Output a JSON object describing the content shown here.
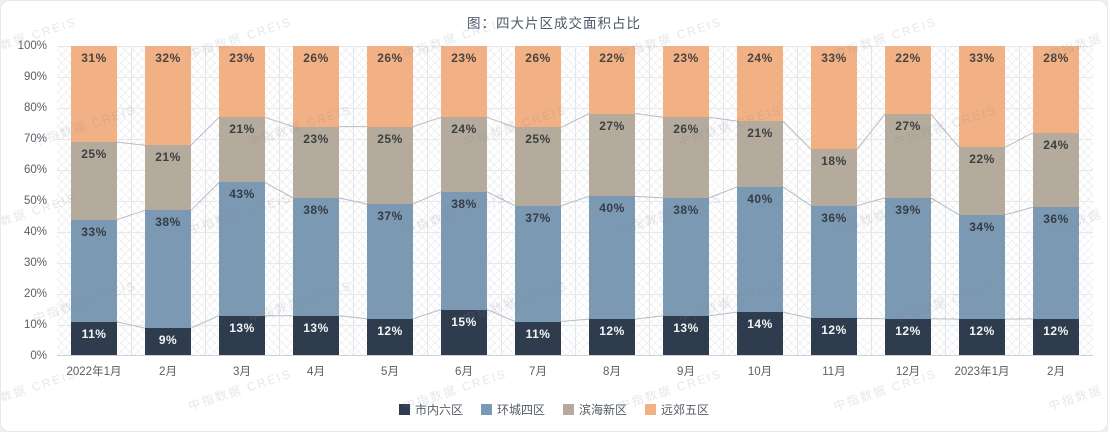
{
  "title": "图：四大片区成交面积占比",
  "watermark_text": "中指数据 CREIS",
  "chart_data": {
    "type": "bar",
    "variant": "stacked-percent-column",
    "title": "图：四大片区成交面积占比",
    "xlabel": "",
    "ylabel": "",
    "ylim": [
      0,
      100
    ],
    "grid": true,
    "legend_position": "bottom",
    "y_ticks": [
      "0%",
      "10%",
      "20%",
      "30%",
      "40%",
      "50%",
      "60%",
      "70%",
      "80%",
      "90%",
      "100%"
    ],
    "categories": [
      "2022年1月",
      "2月",
      "3月",
      "4月",
      "5月",
      "6月",
      "7月",
      "8月",
      "9月",
      "10月",
      "11月",
      "12月",
      "2023年1月",
      "2月"
    ],
    "series": [
      {
        "name": "市内六区",
        "color": "#2f3c4e",
        "label_color": "#f2f4f6",
        "values": [
          11,
          9,
          13,
          13,
          12,
          15,
          11,
          12,
          13,
          14,
          12,
          12,
          12,
          12
        ]
      },
      {
        "name": "环城四区",
        "color": "#7c99b3",
        "label_color": "#343c45",
        "values": [
          33,
          38,
          43,
          38,
          37,
          38,
          37,
          40,
          38,
          40,
          36,
          39,
          34,
          36
        ]
      },
      {
        "name": "滨海新区",
        "color": "#b4ab9c",
        "label_color": "#3c3f42",
        "values": [
          25,
          21,
          21,
          23,
          25,
          24,
          25,
          27,
          26,
          21,
          18,
          27,
          22,
          24
        ]
      },
      {
        "name": "远郊五区",
        "color": "#f1b184",
        "label_color": "#4a4440",
        "values": [
          31,
          32,
          23,
          26,
          26,
          23,
          26,
          22,
          23,
          24,
          33,
          22,
          33,
          28
        ]
      }
    ],
    "series_connector_lines": true,
    "data_label_format": "{value}%"
  },
  "colors": {
    "gridline": "#e6e8ea",
    "connector": "#b6bdc5",
    "axis_text": "#595f66",
    "title_text": "#4d5868"
  }
}
